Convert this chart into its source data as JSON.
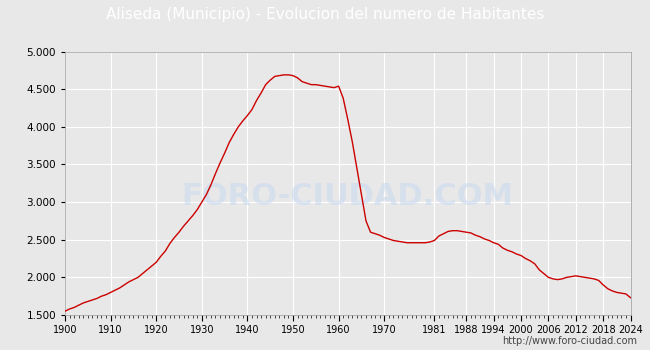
{
  "title": "Aliseda (Municipio) - Evolucion del numero de Habitantes",
  "title_bg_color": "#4a7bc4",
  "title_text_color": "#ffffff",
  "plot_bg_color": "#e8e8e8",
  "grid_color": "#ffffff",
  "line_color": "#cc0000",
  "watermark_text": "foro-ciudad.com",
  "footnote": "http://www.foro-ciudad.com",
  "ylim": [
    1500,
    5000
  ],
  "yticks": [
    1500,
    2000,
    2500,
    3000,
    3500,
    4000,
    4500,
    5000
  ],
  "years": [
    1900,
    1901,
    1902,
    1903,
    1904,
    1905,
    1906,
    1907,
    1908,
    1909,
    1910,
    1911,
    1912,
    1913,
    1914,
    1915,
    1916,
    1917,
    1918,
    1919,
    1920,
    1921,
    1922,
    1923,
    1924,
    1925,
    1926,
    1927,
    1928,
    1929,
    1930,
    1931,
    1932,
    1933,
    1934,
    1935,
    1936,
    1937,
    1938,
    1939,
    1940,
    1941,
    1942,
    1943,
    1944,
    1945,
    1946,
    1947,
    1948,
    1949,
    1950,
    1951,
    1952,
    1953,
    1954,
    1955,
    1956,
    1957,
    1958,
    1959,
    1960,
    1961,
    1962,
    1963,
    1964,
    1965,
    1966,
    1967,
    1968,
    1969,
    1970,
    1971,
    1972,
    1973,
    1974,
    1975,
    1976,
    1977,
    1978,
    1979,
    1980,
    1981,
    1982,
    1983,
    1984,
    1985,
    1986,
    1987,
    1988,
    1989,
    1990,
    1991,
    1992,
    1993,
    1994,
    1995,
    1996,
    1997,
    1998,
    1999,
    2000,
    2001,
    2002,
    2003,
    2004,
    2005,
    2006,
    2007,
    2008,
    2009,
    2010,
    2011,
    2012,
    2013,
    2014,
    2015,
    2016,
    2017,
    2018,
    2019,
    2020,
    2021,
    2022,
    2023,
    2024
  ],
  "population": [
    1550,
    1580,
    1600,
    1630,
    1660,
    1680,
    1700,
    1720,
    1750,
    1770,
    1800,
    1830,
    1860,
    1900,
    1940,
    1970,
    2000,
    2050,
    2100,
    2150,
    2200,
    2280,
    2350,
    2450,
    2530,
    2600,
    2680,
    2750,
    2820,
    2900,
    3000,
    3100,
    3230,
    3380,
    3520,
    3650,
    3790,
    3900,
    4000,
    4080,
    4150,
    4230,
    4350,
    4450,
    4560,
    4620,
    4670,
    4680,
    4690,
    4690,
    4680,
    4650,
    4600,
    4580,
    4560,
    4560,
    4550,
    4540,
    4530,
    4520,
    4540,
    4380,
    4100,
    3800,
    3450,
    3100,
    2750,
    2600,
    2580,
    2560,
    2530,
    2510,
    2490,
    2480,
    2470,
    2460,
    2460,
    2460,
    2460,
    2460,
    2470,
    2490,
    2550,
    2580,
    2610,
    2620,
    2620,
    2610,
    2600,
    2590,
    2560,
    2540,
    2510,
    2490,
    2460,
    2440,
    2390,
    2360,
    2340,
    2310,
    2290,
    2250,
    2220,
    2180,
    2100,
    2050,
    2000,
    1980,
    1970,
    1980,
    2000,
    2010,
    2020,
    2010,
    2000,
    1990,
    1980,
    1960,
    1900,
    1850,
    1820,
    1800,
    1790,
    1780,
    1730
  ],
  "xticks": [
    1900,
    1910,
    1920,
    1930,
    1940,
    1950,
    1960,
    1970,
    1981,
    1988,
    1994,
    2000,
    2006,
    2012,
    2018,
    2024
  ]
}
